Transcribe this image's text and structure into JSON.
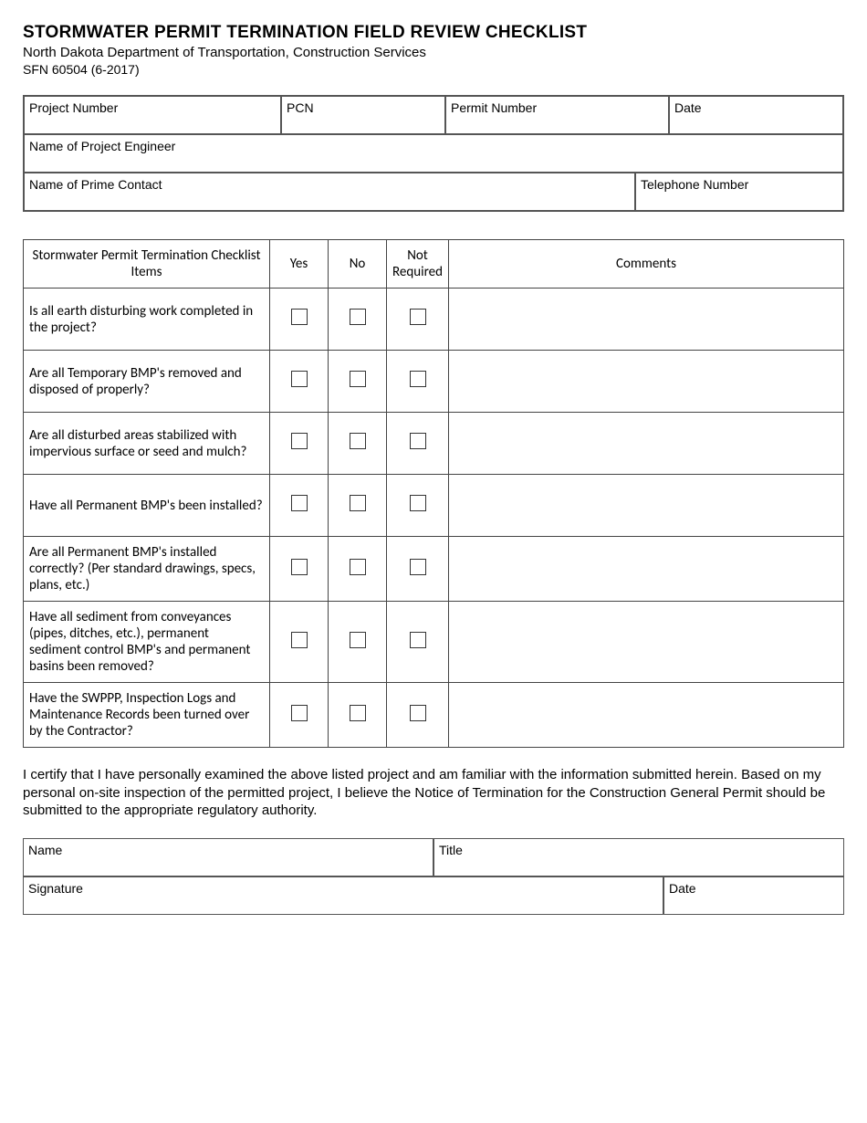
{
  "header": {
    "title": "STORMWATER PERMIT TERMINATION FIELD REVIEW CHECKLIST",
    "subtitle": "North Dakota Department of Transportation, Construction Services",
    "form_number": "SFN 60504 (6-2017)"
  },
  "info_fields": {
    "project_number": "Project Number",
    "pcn": "PCN",
    "permit_number": "Permit Number",
    "date": "Date",
    "engineer": "Name of Project Engineer",
    "prime_contact": "Name of Prime Contact",
    "telephone": "Telephone Number"
  },
  "checklist": {
    "headers": {
      "items": "Stormwater Permit Termination Checklist Items",
      "yes": "Yes",
      "no": "No",
      "not_required": "Not Required",
      "comments": "Comments"
    },
    "rows": [
      {
        "item": "Is all earth disturbing work completed in the project?"
      },
      {
        "item": "Are all Temporary BMP's removed and disposed of properly?"
      },
      {
        "item": "Are all disturbed areas stabilized with impervious surface or seed and mulch?"
      },
      {
        "item": "Have all Permanent BMP's been installed?"
      },
      {
        "item": "Are all Permanent BMP's installed correctly? (Per standard drawings, specs, plans, etc.)"
      },
      {
        "item": "Have all sediment from conveyances (pipes, ditches, etc.), permanent sediment control BMP's and permanent basins been removed?"
      },
      {
        "item": "Have the SWPPP, Inspection Logs and Maintenance Records been turned over by the Contractor?"
      }
    ]
  },
  "certification": "I certify that I have personally examined the above listed project and am familiar with the information submitted herein.  Based on my personal on-site inspection of the permitted project, I believe the Notice of Termination for the Construction General Permit should be submitted to the appropriate regulatory authority.",
  "signature_fields": {
    "name": "Name",
    "title": "Title",
    "signature": "Signature",
    "date": "Date"
  }
}
